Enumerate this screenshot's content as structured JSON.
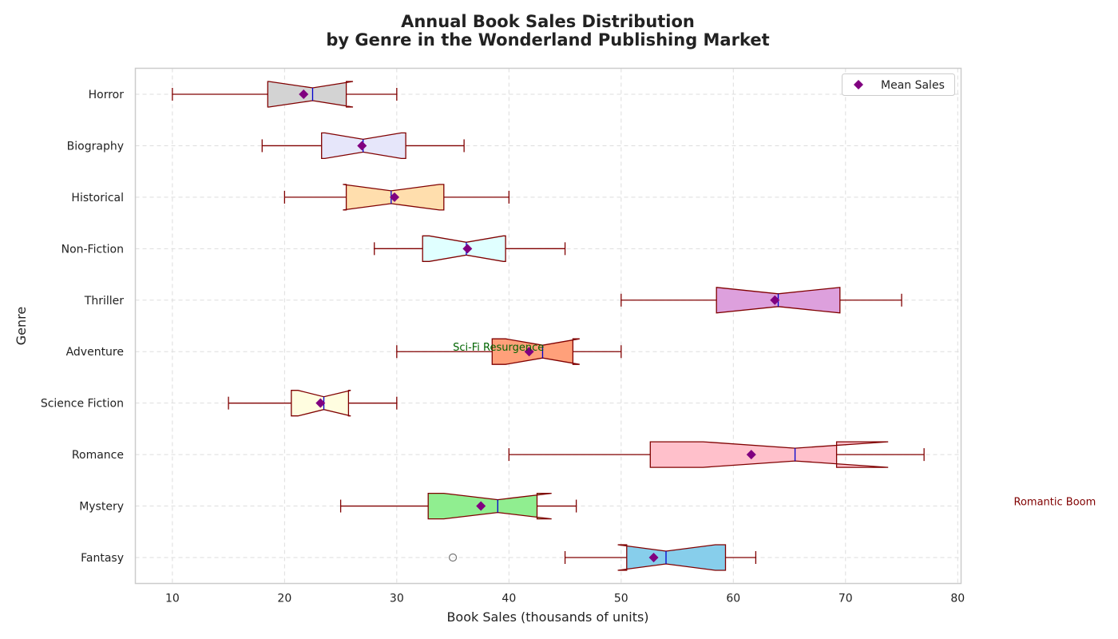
{
  "chart_data": {
    "type": "boxplot",
    "orientation": "horizontal",
    "notched": true,
    "title_lines": [
      "Annual Book Sales Distribution",
      "by Genre in the Wonderland Publishing Market"
    ],
    "xlabel": "Book Sales (thousands of units)",
    "ylabel": "Genre",
    "xlim": [
      6.7,
      80.3
    ],
    "xticks": [
      10,
      20,
      30,
      40,
      50,
      60,
      70,
      80
    ],
    "grid": true,
    "legend": {
      "position": "top-right",
      "entries": [
        {
          "label": "Mean Sales",
          "color": "#800080",
          "marker": "diamond"
        }
      ]
    },
    "colors": {
      "box_edge": "#800000",
      "whisker": "#800000",
      "median": "#0000cd",
      "mean": "#800080",
      "grid": "#dddddd"
    },
    "categories": [
      "Fantasy",
      "Mystery",
      "Romance",
      "Science Fiction",
      "Adventure",
      "Thriller",
      "Non-Fiction",
      "Historical",
      "Biography",
      "Horror"
    ],
    "boxes": [
      {
        "genre": "Fantasy",
        "whisker_low": 45,
        "q1": 50.5,
        "median": 54,
        "q3": 59.3,
        "whisker_high": 62,
        "notch_low": 49.7,
        "notch_high": 58.4,
        "mean": 52.9,
        "outliers": [
          35
        ],
        "color": "#87ceeb"
      },
      {
        "genre": "Mystery",
        "whisker_low": 25,
        "q1": 32.8,
        "median": 39,
        "q3": 42.5,
        "whisker_high": 46,
        "notch_low": 34.2,
        "notch_high": 43.8,
        "mean": 37.5,
        "outliers": [],
        "color": "#90ee90"
      },
      {
        "genre": "Romance",
        "whisker_low": 40,
        "q1": 52.6,
        "median": 65.5,
        "q3": 69.2,
        "whisker_high": 77,
        "notch_low": 57.3,
        "notch_high": 73.8,
        "mean": 61.6,
        "outliers": [],
        "color": "#ffc0cb"
      },
      {
        "genre": "Science Fiction",
        "whisker_low": 15,
        "q1": 20.6,
        "median": 23.5,
        "q3": 25.7,
        "whisker_high": 30,
        "notch_low": 21.2,
        "notch_high": 25.9,
        "mean": 23.2,
        "outliers": [],
        "color": "#fffde0"
      },
      {
        "genre": "Adventure",
        "whisker_low": 30,
        "q1": 38.5,
        "median": 43,
        "q3": 45.7,
        "whisker_high": 50,
        "notch_low": 39.7,
        "notch_high": 46.3,
        "mean": 41.8,
        "outliers": [],
        "color": "#ffa07a"
      },
      {
        "genre": "Thriller",
        "whisker_low": 50,
        "q1": 58.5,
        "median": 64,
        "q3": 69.5,
        "whisker_high": 75,
        "notch_low": 58.5,
        "notch_high": 69.5,
        "mean": 63.7,
        "outliers": [],
        "color": "#dda0dd"
      },
      {
        "genre": "Non-Fiction",
        "whisker_low": 28,
        "q1": 32.3,
        "median": 36.2,
        "q3": 39.7,
        "whisker_high": 45,
        "notch_low": 32.9,
        "notch_high": 39.5,
        "mean": 36.3,
        "outliers": [],
        "color": "#e0ffff"
      },
      {
        "genre": "Historical",
        "whisker_low": 20,
        "q1": 25.5,
        "median": 29.5,
        "q3": 34.2,
        "whisker_high": 40,
        "notch_low": 25.2,
        "notch_high": 33.8,
        "mean": 29.8,
        "outliers": [],
        "color": "#ffdead"
      },
      {
        "genre": "Biography",
        "whisker_low": 18,
        "q1": 23.3,
        "median": 27,
        "q3": 30.8,
        "whisker_high": 36,
        "notch_low": 23.6,
        "notch_high": 30.4,
        "mean": 26.9,
        "outliers": [],
        "color": "#e6e6fa"
      },
      {
        "genre": "Horror",
        "whisker_low": 10,
        "q1": 18.5,
        "median": 22.5,
        "q3": 25.5,
        "whisker_high": 30,
        "notch_low": 18.6,
        "notch_high": 26.1,
        "mean": 21.7,
        "outliers": [],
        "color": "#d3d3d3"
      }
    ],
    "annotations": [
      {
        "text": "Sci-Fi Resurgence",
        "x": 35,
        "genre": "Adventure",
        "color": "#006400"
      },
      {
        "text": "Romantic Boom",
        "x": 85,
        "genre": "Mystery",
        "color": "#800000"
      }
    ]
  }
}
